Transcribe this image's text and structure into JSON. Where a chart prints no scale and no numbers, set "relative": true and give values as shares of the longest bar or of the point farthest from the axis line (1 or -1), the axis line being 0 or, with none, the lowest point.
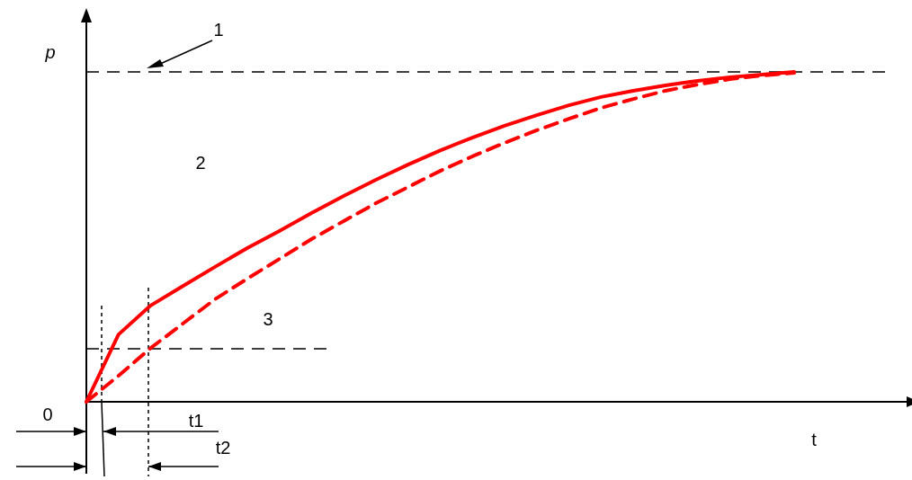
{
  "chart_data": {
    "type": "line",
    "relative": true,
    "xlabel": "t",
    "ylabel": "p",
    "categories": [
      null,
      null,
      null,
      null,
      null,
      null,
      null,
      null,
      null,
      null,
      null,
      null,
      null,
      null,
      null,
      null,
      null,
      null,
      null,
      null,
      null,
      null,
      null
    ],
    "series": [
      {
        "color": "#ff0000",
        "line_style": "solid",
        "values": [
          0,
          0.204,
          0.292,
          0.351,
          0.409,
          0.466,
          0.518,
          0.572,
          0.624,
          0.673,
          0.719,
          0.762,
          0.801,
          0.837,
          0.869,
          0.899,
          0.924,
          0.943,
          0.959,
          0.973,
          0.984,
          0.992,
          1
        ]
      },
      {
        "color": "#ff0000",
        "line_style": "dashed",
        "values": [
          0,
          0.079,
          0.163,
          0.237,
          0.311,
          0.373,
          0.433,
          0.493,
          0.548,
          0.602,
          0.651,
          0.7,
          0.744,
          0.785,
          0.823,
          0.858,
          0.891,
          0.918,
          0.943,
          0.962,
          0.978,
          0.989,
          0.997
        ]
      }
    ],
    "ref_lines": [
      {
        "axis": "y",
        "value": 1,
        "label": "1",
        "color": "#000000",
        "line_style": "dashed"
      },
      {
        "axis": "y",
        "value": 0.161,
        "label": null,
        "color": "#000000",
        "line_style": "dashed"
      }
    ],
    "annotations": [
      "2",
      "0",
      "t1",
      "t2",
      "3"
    ]
  }
}
